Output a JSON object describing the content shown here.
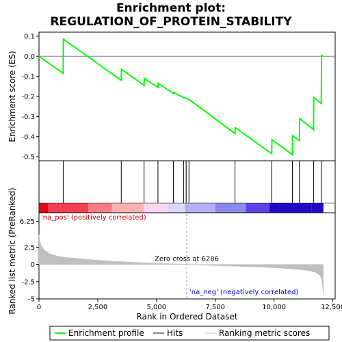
{
  "title_line1": "Enrichment plot:",
  "title_line2": "REGULATION_OF_PROTEIN_STABILITY",
  "chart_data": {
    "type": "line",
    "top_panel": {
      "ylabel": "Enrichment score (ES)",
      "ylim": [
        -0.52,
        0.12
      ],
      "yticks": [
        0.1,
        0.0,
        -0.1,
        -0.2,
        -0.3,
        -0.4,
        -0.5
      ],
      "ytick_labels": [
        "0.1",
        "0.0",
        "-0.1",
        "-0.2",
        "-0.3",
        "-0.4",
        "-0.5"
      ],
      "series": [
        {
          "name": "Enrichment profile",
          "color": "#00ff00",
          "x": [
            0,
            1030,
            1040,
            3500,
            3510,
            4470,
            4480,
            5060,
            5070,
            5720,
            5730,
            6150,
            6160,
            6260,
            6270,
            6380,
            6390,
            8340,
            8350,
            9900,
            9910,
            10780,
            10790,
            11080,
            11090,
            11680,
            11690,
            12010,
            12020,
            12100
          ],
          "y": [
            0.0,
            -0.085,
            0.085,
            -0.12,
            -0.065,
            -0.145,
            -0.11,
            -0.155,
            -0.135,
            -0.185,
            -0.18,
            -0.205,
            -0.205,
            -0.21,
            -0.21,
            -0.215,
            -0.215,
            -0.385,
            -0.355,
            -0.485,
            -0.415,
            -0.49,
            -0.395,
            -0.42,
            -0.31,
            -0.365,
            -0.205,
            -0.235,
            0.005,
            0.0
          ]
        }
      ]
    },
    "hits": [
      1030,
      3500,
      4470,
      5060,
      5720,
      6150,
      6260,
      6380,
      8340,
      9900,
      10780,
      11080,
      11680,
      12010
    ],
    "color_bar": {
      "colors": [
        "#e8001a",
        "#f24050",
        "#f77c86",
        "#fbb0b6",
        "#fcd6f0",
        "#d8d8ff",
        "#b2b2f6",
        "#8a8aee",
        "#5c44e4",
        "#2008c8"
      ],
      "bounds": [
        0,
        400,
        2100,
        3100,
        4450,
        5450,
        6200,
        7500,
        8800,
        9800,
        11600,
        12100
      ]
    },
    "bottom_panel": {
      "ylabel": "Ranked list metric (PreRanked)",
      "ylim": [
        -5,
        7.5
      ],
      "yticks": [
        6.25,
        2.5,
        0,
        -2.5,
        -5
      ],
      "ytick_labels": [
        "6.25",
        "2.5",
        "0",
        "-2.5",
        "-5"
      ],
      "xlabel": "Rank in Ordered Dataset",
      "xlim": [
        0,
        12600
      ],
      "xticks": [
        0,
        2500,
        5000,
        7500,
        10000,
        12500
      ],
      "xtick_labels": [
        "0",
        "2,500",
        "5,000",
        "7,500",
        "10,000",
        "12,500"
      ],
      "metric_x": [
        0,
        30,
        100,
        250,
        500,
        800,
        1200,
        2000,
        3000,
        4000,
        5000,
        6286,
        7500,
        8500,
        9500,
        10300,
        11000,
        11500,
        11800,
        11950,
        12030,
        12070,
        12100
      ],
      "metric_y": [
        4.3,
        3.5,
        2.7,
        2.0,
        1.5,
        1.2,
        1.0,
        0.75,
        0.5,
        0.32,
        0.18,
        0.0,
        -0.17,
        -0.28,
        -0.4,
        -0.55,
        -0.72,
        -0.9,
        -1.2,
        -1.6,
        -2.2,
        -3.5,
        -4.6
      ],
      "fill_color": "#c0c0c0",
      "zero_cross_rank": 6286,
      "zero_cross_label": "Zero cross at 6286",
      "pos_label": "'na_pos' (positively correlated)",
      "neg_label": "'na_neg' (negatively correlated)"
    },
    "legend": {
      "items": [
        {
          "label": "Enrichment profile",
          "color": "#00ff00"
        },
        {
          "label": "Hits",
          "color": "#000000"
        },
        {
          "label": "Ranking metric scores",
          "color": "#c0c0c0"
        }
      ]
    }
  }
}
